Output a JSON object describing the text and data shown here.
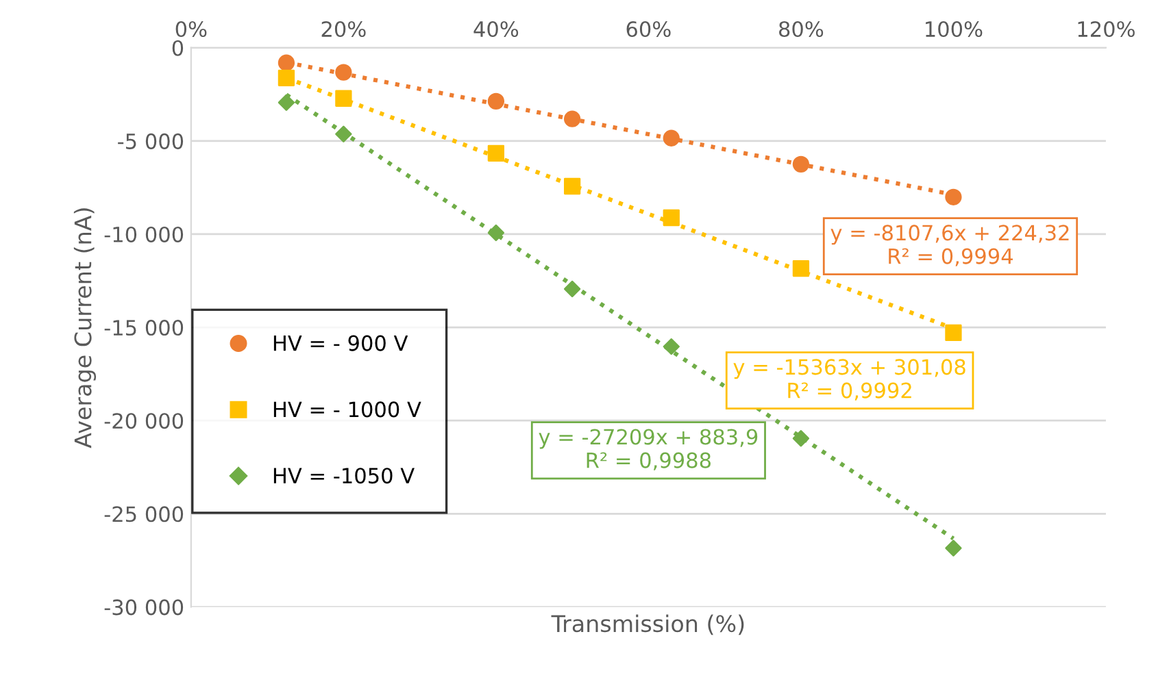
{
  "chart_data": {
    "type": "scatter",
    "xlabel": "Transmission (%)",
    "ylabel": "Average Current (nA)",
    "xlim": [
      0,
      120
    ],
    "xticks": [
      {
        "value": 0,
        "label": "0%"
      },
      {
        "value": 20,
        "label": "20%"
      },
      {
        "value": 40,
        "label": "40%"
      },
      {
        "value": 60,
        "label": "60%"
      },
      {
        "value": 80,
        "label": "80%"
      },
      {
        "value": 100,
        "label": "100%"
      },
      {
        "value": 120,
        "label": "120%"
      }
    ],
    "ylim": [
      -30000,
      0
    ],
    "yticks": [
      {
        "value": -30000,
        "label": "-30 000"
      },
      {
        "value": -25000,
        "label": "-25 000"
      },
      {
        "value": -20000,
        "label": "-20 000"
      },
      {
        "value": -15000,
        "label": "-15 000"
      },
      {
        "value": -10000,
        "label": "-10 000"
      },
      {
        "value": -5000,
        "label": "-5 000"
      },
      0
    ],
    "grid": "y",
    "legend": "left",
    "series": [
      {
        "name": "HV = - 900 V",
        "color": "#ed7d31",
        "marker": "circle",
        "x": [
          12.5,
          20,
          40,
          50,
          63,
          80,
          100
        ],
        "values": [
          -810,
          -1320,
          -2870,
          -3820,
          -4850,
          -6250,
          -8010
        ]
      },
      {
        "name": "HV = - 1000 V",
        "color": "#ffc000",
        "marker": "square",
        "x": [
          12.5,
          20,
          40,
          50,
          63,
          80,
          100
        ],
        "values": [
          -1620,
          -2720,
          -5660,
          -7430,
          -9120,
          -11840,
          -15290
        ]
      },
      {
        "name": "HV = -1050 V",
        "color": "#70ad47",
        "marker": "diamond",
        "x": [
          12.5,
          20,
          40,
          50,
          63,
          80,
          100
        ],
        "values": [
          -2940,
          -4630,
          -9930,
          -12940,
          -16030,
          -20960,
          -26840
        ]
      },
      {
        "type": "line",
        "line_style": "dotted",
        "color": "#ed7d31",
        "x": [
          12.5,
          100
        ],
        "values": [
          -790,
          -7880
        ]
      },
      {
        "type": "line",
        "line_style": "dotted",
        "color": "#ffc000",
        "x": [
          12.5,
          100
        ],
        "values": [
          -1620,
          -15060
        ]
      },
      {
        "type": "line",
        "line_style": "dotted",
        "color": "#70ad47",
        "x": [
          12.5,
          100
        ],
        "values": [
          -2520,
          -26330
        ]
      }
    ],
    "annotations": [
      "y = -8107,6x + 224,32\nR² = 0,9994",
      "y = -15363x + 301,08\nR² = 0,9992",
      "y = -27209x + 883,9\nR² = 0,9988"
    ]
  }
}
